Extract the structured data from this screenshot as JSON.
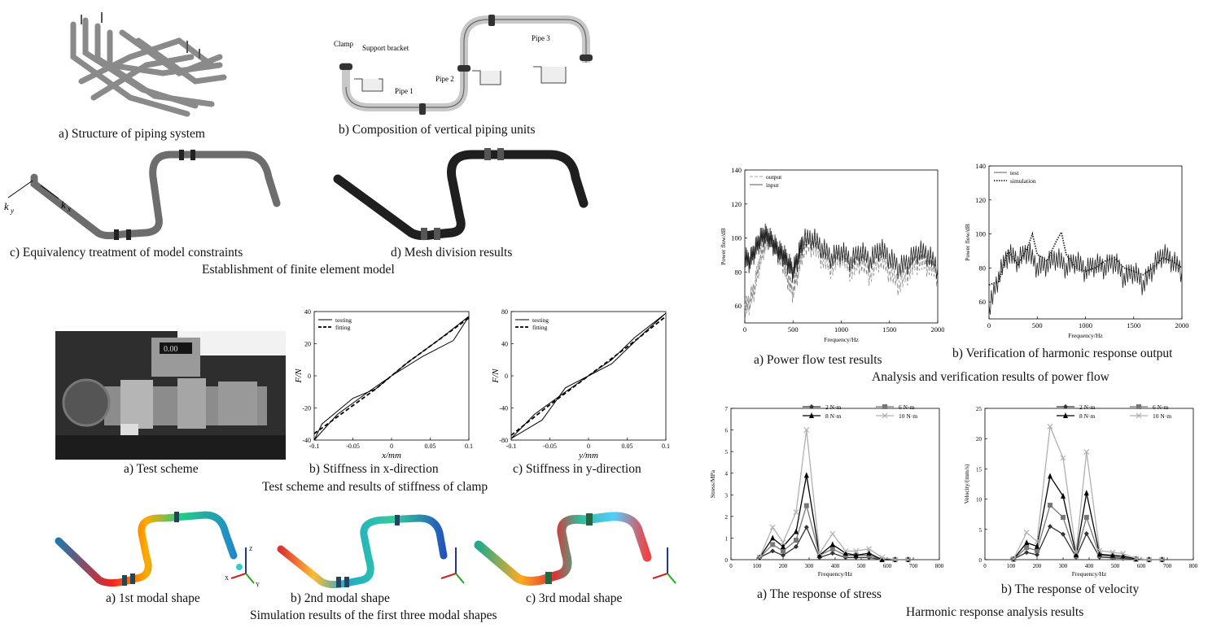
{
  "fem": {
    "cap_a": "a) Structure of piping system",
    "cap_b": "b) Composition of vertical piping units",
    "cap_c": "c) Equivalency treatment of model constraints",
    "cap_d": "d) Mesh division results",
    "title": "Establishment of finite element model",
    "labels": {
      "clamp": "Clamp",
      "support": "Support bracket",
      "pipe1": "Pipe 1",
      "pipe2": "Pipe 2",
      "pipe3": "Pipe 3",
      "ky": "k",
      "ky_sub": "y",
      "kx": "k",
      "kx_sub": "x"
    }
  },
  "stiffness": {
    "cap_a": "a) Test scheme",
    "cap_b": "b) Stiffness in x-direction",
    "cap_c": "c) Stiffness in y-direction",
    "title": "Test scheme and results of stiffness of clamp",
    "photo_display": "0.00"
  },
  "modal": {
    "cap_a": "a) 1st modal shape",
    "cap_b": "b) 2nd modal shape",
    "cap_c": "c) 3rd modal shape",
    "title": "Simulation results of the first three modal shapes",
    "axis_z": "Z",
    "axis_x": "X",
    "axis_y": "Y"
  },
  "powerflow": {
    "cap_a": "a) Power flow test results",
    "cap_b": "b) Verification of harmonic response output",
    "title": "Analysis and verification results of power flow"
  },
  "harmonic": {
    "cap_a": "a) The response of stress",
    "cap_b": "b) The response of velocity",
    "title": "Harmonic response analysis results"
  },
  "chart_data": [
    {
      "id": "stiffness-x",
      "type": "line",
      "xlabel": "x/mm",
      "ylabel": "F/N",
      "xlim": [
        -0.1,
        0.1
      ],
      "ylim": [
        -40,
        40
      ],
      "xticks": [
        -0.1,
        -0.05,
        0,
        0.05,
        0.1
      ],
      "xtick_labels": [
        "-0.1",
        "-0.05",
        "0",
        "0.05",
        "0.1"
      ],
      "yticks": [
        -40,
        -20,
        0,
        20,
        40
      ],
      "ytick_labels": [
        "-40",
        "-20",
        "0",
        "20",
        "40"
      ],
      "legend": [
        "testing",
        "fitting"
      ],
      "series": [
        {
          "name": "testing",
          "style": "solid",
          "x": [
            -0.1,
            -0.09,
            -0.05,
            -0.02,
            0,
            0.04,
            0.08,
            0.1,
            0.06,
            0.02,
            0,
            -0.03,
            -0.07,
            -0.1
          ],
          "y": [
            -40,
            -30,
            -14,
            -8,
            0,
            12,
            22,
            37,
            22,
            8,
            0,
            -10,
            -24,
            -40
          ]
        },
        {
          "name": "fitting",
          "style": "dashed",
          "x": [
            -0.1,
            -0.06,
            -0.02,
            0,
            0.02,
            0.06,
            0.1
          ],
          "y": [
            -36,
            -22,
            -8,
            0,
            8,
            22,
            36
          ]
        }
      ]
    },
    {
      "id": "stiffness-y",
      "type": "line",
      "xlabel": "y/mm",
      "ylabel": "F/N",
      "xlim": [
        -0.1,
        0.1
      ],
      "ylim": [
        -80,
        80
      ],
      "xticks": [
        -0.1,
        -0.05,
        0,
        0.05,
        0.1
      ],
      "xtick_labels": [
        "-0.1",
        "-0.05",
        "0",
        "0.05",
        "0.1"
      ],
      "yticks": [
        -80,
        -40,
        0,
        40,
        80
      ],
      "ytick_labels": [
        "-80",
        "-40",
        "0",
        "40",
        "80"
      ],
      "legend": [
        "testing",
        "fitting"
      ],
      "series": [
        {
          "name": "testing",
          "style": "solid",
          "x": [
            -0.1,
            -0.06,
            -0.03,
            0,
            0.03,
            0.06,
            0.1,
            0.07,
            0.03,
            0,
            -0.03,
            -0.07,
            -0.1
          ],
          "y": [
            -78,
            -55,
            -15,
            0,
            20,
            48,
            78,
            52,
            15,
            0,
            -20,
            -48,
            -78
          ]
        },
        {
          "name": "fitting",
          "style": "dashed",
          "x": [
            -0.1,
            -0.05,
            0,
            0.05,
            0.1
          ],
          "y": [
            -74,
            -36,
            0,
            36,
            74
          ]
        }
      ]
    },
    {
      "id": "power-flow-test",
      "type": "line",
      "xlabel": "Frequency/Hz",
      "ylabel": "Power flow/dB",
      "xlim": [
        0,
        2000
      ],
      "ylim": [
        50,
        140
      ],
      "xticks": [
        0,
        500,
        1000,
        1500,
        2000
      ],
      "xtick_labels": [
        "0",
        "500",
        "1000",
        "1500",
        "2000"
      ],
      "yticks": [
        60,
        80,
        100,
        120,
        140
      ],
      "ytick_labels": [
        "60",
        "80",
        "100",
        "120",
        "140"
      ],
      "legend": [
        "output",
        "input"
      ],
      "series": [
        {
          "name": "output",
          "style": "dashed",
          "x": [
            0,
            50,
            100,
            150,
            200,
            250,
            300,
            350,
            400,
            450,
            500,
            550,
            600,
            700,
            800,
            900,
            1000,
            1100,
            1200,
            1300,
            1400,
            1500,
            1600,
            1700,
            1800,
            1900,
            2000
          ],
          "y": [
            58,
            62,
            70,
            85,
            95,
            100,
            96,
            90,
            85,
            75,
            68,
            80,
            92,
            96,
            88,
            82,
            90,
            80,
            86,
            78,
            88,
            80,
            72,
            80,
            86,
            84,
            78
          ]
        },
        {
          "name": "input",
          "style": "solid",
          "x": [
            0,
            50,
            100,
            150,
            200,
            250,
            300,
            350,
            400,
            450,
            500,
            550,
            600,
            700,
            800,
            900,
            1000,
            1100,
            1200,
            1300,
            1400,
            1500,
            1600,
            1700,
            1800,
            1900,
            2000
          ],
          "y": [
            88,
            86,
            92,
            98,
            102,
            100,
            96,
            92,
            90,
            85,
            80,
            88,
            98,
            100,
            94,
            88,
            92,
            86,
            92,
            86,
            94,
            88,
            82,
            86,
            92,
            90,
            82
          ]
        }
      ]
    },
    {
      "id": "harmonic-verification",
      "type": "line",
      "xlabel": "Frequency/Hz",
      "ylabel": "Power flow/dB",
      "xlim": [
        0,
        2000
      ],
      "ylim": [
        50,
        140
      ],
      "xticks": [
        0,
        500,
        1000,
        1500,
        2000
      ],
      "xtick_labels": [
        "0",
        "500",
        "1000",
        "1500",
        "2000"
      ],
      "yticks": [
        60,
        80,
        100,
        120,
        140
      ],
      "ytick_labels": [
        "60",
        "80",
        "100",
        "120",
        "140"
      ],
      "legend": [
        "test",
        "simulation"
      ],
      "series": [
        {
          "name": "test",
          "style": "solid",
          "x": [
            0,
            100,
            200,
            300,
            400,
            500,
            600,
            700,
            800,
            900,
            1000,
            1100,
            1200,
            1300,
            1400,
            1500,
            1600,
            1700,
            1800,
            1900,
            2000
          ],
          "y": [
            55,
            75,
            88,
            84,
            90,
            80,
            82,
            86,
            80,
            84,
            78,
            82,
            80,
            84,
            74,
            78,
            70,
            80,
            88,
            84,
            78
          ]
        },
        {
          "name": "simulation",
          "style": "dotted",
          "x": [
            0,
            100,
            200,
            300,
            400,
            450,
            500,
            600,
            700,
            750,
            800,
            900,
            1000,
            1100,
            1200,
            1300,
            1400,
            1500,
            1600,
            1700,
            1800,
            1900,
            2000
          ],
          "y": [
            70,
            72,
            90,
            82,
            92,
            100,
            88,
            84,
            96,
            101,
            88,
            80,
            78,
            80,
            84,
            86,
            80,
            78,
            76,
            80,
            86,
            84,
            80
          ]
        }
      ]
    },
    {
      "id": "stress-response",
      "type": "line",
      "xlabel": "Frequency/Hz",
      "ylabel": "Stress/MPa",
      "xlim": [
        0,
        800
      ],
      "ylim": [
        0,
        7
      ],
      "xticks": [
        0,
        100,
        200,
        300,
        400,
        500,
        600,
        700,
        800
      ],
      "xtick_labels": [
        "0",
        "100",
        "200",
        "300",
        "400",
        "500",
        "600",
        "700",
        "800"
      ],
      "yticks": [
        0,
        1,
        2,
        3,
        4,
        5,
        6,
        7
      ],
      "ytick_labels": [
        "0",
        "1",
        "2",
        "3",
        "4",
        "5",
        "6",
        "7"
      ],
      "x": [
        110,
        160,
        200,
        250,
        290,
        340,
        390,
        440,
        480,
        530,
        580,
        630,
        680
      ],
      "series": [
        {
          "name": "2 N·m",
          "marker": "diamond",
          "color": "#333333",
          "values": [
            0.1,
            0.4,
            0.2,
            0.6,
            1.5,
            0.1,
            0.3,
            0.1,
            0.1,
            0.1,
            0.0,
            0.0,
            0.0
          ]
        },
        {
          "name": "6 N·m",
          "marker": "square",
          "color": "#777777",
          "values": [
            0.1,
            0.7,
            0.4,
            0.9,
            2.5,
            0.2,
            0.5,
            0.2,
            0.2,
            0.2,
            0.0,
            0.0,
            0.0
          ]
        },
        {
          "name": "8 N·m",
          "marker": "triangle",
          "color": "#000000",
          "values": [
            0.1,
            1.0,
            0.6,
            1.3,
            3.9,
            0.2,
            0.7,
            0.3,
            0.2,
            0.3,
            0.0,
            0.0,
            0.0
          ]
        },
        {
          "name": "10 N·m",
          "marker": "x",
          "color": "#b0b0b0",
          "values": [
            0.1,
            1.5,
            0.8,
            2.2,
            6.0,
            0.3,
            1.2,
            0.4,
            0.4,
            0.5,
            0.1,
            0.0,
            0.0
          ]
        }
      ]
    },
    {
      "id": "velocity-response",
      "type": "line",
      "xlabel": "Frequency/Hz",
      "ylabel": "Velocity/(mm/s)",
      "xlim": [
        0,
        800
      ],
      "ylim": [
        0,
        25
      ],
      "xticks": [
        0,
        100,
        200,
        300,
        400,
        500,
        600,
        700,
        800
      ],
      "xtick_labels": [
        "0",
        "100",
        "200",
        "300",
        "400",
        "500",
        "600",
        "700",
        "800"
      ],
      "yticks": [
        0,
        5,
        10,
        15,
        20,
        25
      ],
      "ytick_labels": [
        "0",
        "5",
        "10",
        "15",
        "20",
        "25"
      ],
      "x": [
        110,
        160,
        200,
        250,
        300,
        350,
        390,
        440,
        490,
        530,
        580,
        630,
        680
      ],
      "series": [
        {
          "name": "2 N·m",
          "marker": "diamond",
          "color": "#333333",
          "values": [
            0.1,
            1.2,
            0.8,
            5.5,
            4.2,
            0.4,
            4.3,
            0.4,
            0.3,
            0.2,
            0.1,
            0.0,
            0.0
          ]
        },
        {
          "name": "6 N·m",
          "marker": "square",
          "color": "#777777",
          "values": [
            0.1,
            2.0,
            1.5,
            9.0,
            7.0,
            0.6,
            7.0,
            0.7,
            0.5,
            0.4,
            0.1,
            0.0,
            0.0
          ]
        },
        {
          "name": "8 N·m",
          "marker": "triangle",
          "color": "#000000",
          "values": [
            0.1,
            2.8,
            2.2,
            13.8,
            10.5,
            0.8,
            11.0,
            0.9,
            0.7,
            0.6,
            0.1,
            0.0,
            0.0
          ]
        },
        {
          "name": "10 N·m",
          "marker": "x",
          "color": "#b0b0b0",
          "values": [
            0.1,
            4.5,
            3.0,
            22.0,
            16.8,
            1.2,
            17.8,
            1.5,
            1.2,
            1.0,
            0.2,
            0.0,
            0.0
          ]
        }
      ]
    }
  ]
}
